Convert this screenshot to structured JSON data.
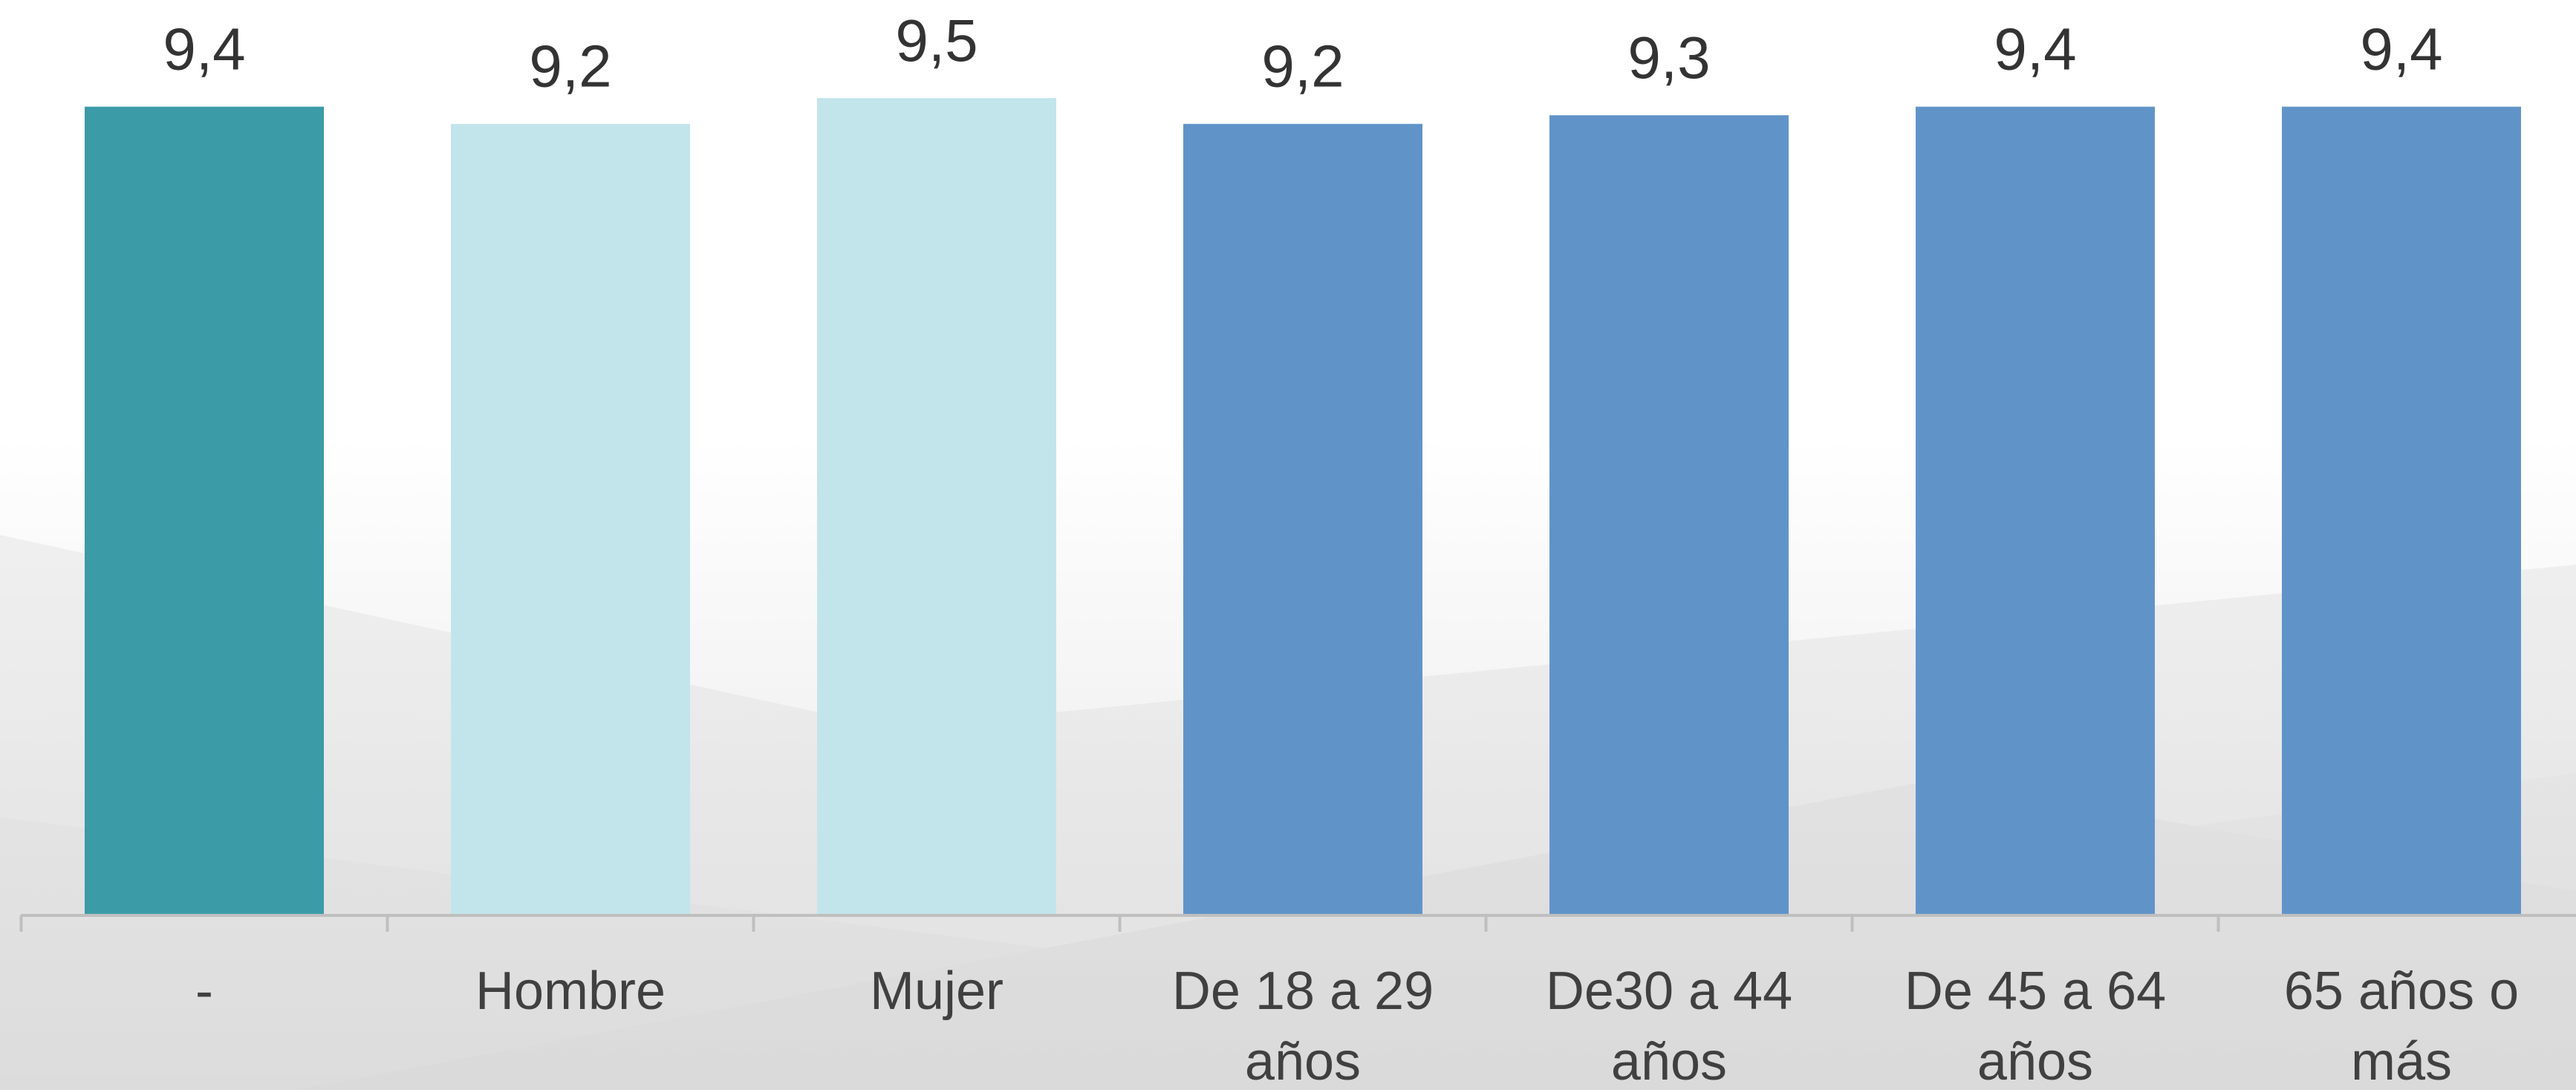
{
  "colors": {
    "bar_total": "#3B9BA6",
    "bar_sex": "#C2E5EB",
    "bar_age": "#6094C9",
    "axis": "#BFBFBF",
    "text": "#333333"
  },
  "chart_data": {
    "type": "bar",
    "title": "",
    "xlabel": "",
    "ylabel": "",
    "ylim": [
      0,
      9.5
    ],
    "grid": false,
    "legend": "none",
    "value_labels": [
      "9,4",
      "9,2",
      "9,5",
      "9,2",
      "9,3",
      "9,4",
      "9,4"
    ],
    "categories": [
      "-",
      "Hombre",
      "Mujer",
      "De 18 a 29 años",
      "De30 a 44 años",
      "De 45 a 64 años",
      "65 años o más"
    ],
    "values": [
      9.4,
      9.2,
      9.5,
      9.2,
      9.3,
      9.4,
      9.4
    ],
    "bar_colors": [
      "#3B9BA6",
      "#C2E5EB",
      "#C2E5EB",
      "#6094C9",
      "#6094C9",
      "#6094C9",
      "#6094C9"
    ]
  }
}
